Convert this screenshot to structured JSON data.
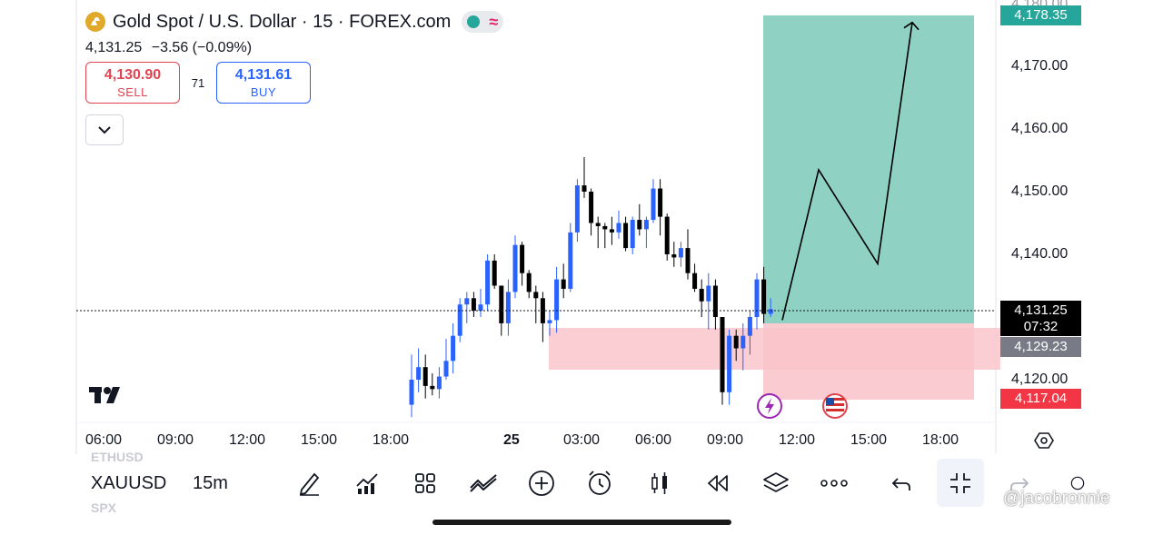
{
  "header": {
    "title": "Gold Spot / U.S. Dollar · 15 · FOREX.com",
    "last_price": "4,131.25",
    "change": "−3.56 (−0.09%)",
    "sell_price": "4,130.90",
    "sell_label": "SELL",
    "spread": "71",
    "buy_price": "4,131.61",
    "buy_label": "BUY"
  },
  "price_tags": {
    "top_partial": "4,180.00",
    "target": "4,178.35",
    "current": "4,131.25",
    "countdown": "07:32",
    "entry": "4,129.23",
    "stop": "4,117.04"
  },
  "toolbar": {
    "symbol": "XAUUSD",
    "interval": "15m",
    "ghost_above": "ETHUSD",
    "ghost_below": "SPX",
    "icons": [
      "draw-icon",
      "indicators-icon",
      "layouts-icon",
      "compare-icon",
      "add-icon",
      "alert-icon",
      "candles-icon",
      "replay-icon",
      "layers-icon",
      "more-icon",
      "undo-icon",
      "collapse-icon",
      "redo-icon",
      "partial-icon"
    ]
  },
  "watermark": "@jacobronnie",
  "colors": {
    "up": "#2962ff",
    "down": "#000000",
    "target_zone": "#8fd1c3",
    "stop_zone": "#f9c5cb",
    "sell": "#e04450",
    "buy": "#2962ff",
    "target_tag": "#26a69a",
    "stop_tag": "#f23645",
    "entry_tag": "#787b86"
  },
  "chart_data": {
    "type": "candlestick",
    "symbol": "XAUUSD",
    "timeframe": "15",
    "y_axis": {
      "ticks": [
        4120,
        4130,
        4140,
        4150,
        4160,
        4170
      ],
      "tick_labels": [
        "4,120.00",
        "4,130.00",
        "4,140.00",
        "4,150.00",
        "4,160.00",
        "4,170.00"
      ],
      "side": "right"
    },
    "x_axis": {
      "ticks": [
        "06:00",
        "09:00",
        "12:00",
        "15:00",
        "18:00",
        "25",
        "03:00",
        "06:00",
        "09:00",
        "12:00",
        "15:00",
        "18:00"
      ]
    },
    "candles_ohlc": [
      [
        4116.0,
        4124.0,
        4114.0,
        4120.0
      ],
      [
        4120.0,
        4125.0,
        4118.0,
        4122.0
      ],
      [
        4122.0,
        4124.0,
        4117.0,
        4119.0
      ],
      [
        4119.0,
        4121.0,
        4117.5,
        4118.5
      ],
      [
        4118.5,
        4122.0,
        4117.0,
        4120.5
      ],
      [
        4120.5,
        4126.5,
        4120.0,
        4123.0
      ],
      [
        4123.0,
        4129.0,
        4121.0,
        4127.0
      ],
      [
        4127.0,
        4133.0,
        4126.0,
        4132.0
      ],
      [
        4132.0,
        4134.0,
        4129.0,
        4133.0
      ],
      [
        4133.0,
        4134.0,
        4130.0,
        4131.0
      ],
      [
        4131.0,
        4134.5,
        4130.0,
        4132.0
      ],
      [
        4132.0,
        4140.0,
        4131.0,
        4139.0
      ],
      [
        4139.0,
        4140.0,
        4134.5,
        4135.0
      ],
      [
        4135.0,
        4135.0,
        4127.0,
        4129.0
      ],
      [
        4129.0,
        4136.0,
        4127.0,
        4134.0
      ],
      [
        4134.0,
        4143.0,
        4133.0,
        4141.5
      ],
      [
        4141.5,
        4142.0,
        4135.0,
        4137.0
      ],
      [
        4137.0,
        4137.5,
        4133.0,
        4134.0
      ],
      [
        4134.0,
        4135.0,
        4129.0,
        4133.0
      ],
      [
        4133.0,
        4134.0,
        4126.0,
        4129.0
      ],
      [
        4129.0,
        4131.0,
        4127.0,
        4129.5
      ],
      [
        4129.5,
        4138.0,
        4127.5,
        4136.0
      ],
      [
        4136.0,
        4138.5,
        4133.0,
        4134.5
      ],
      [
        4134.5,
        4145.0,
        4134.0,
        4143.5
      ],
      [
        4143.5,
        4152.0,
        4142.0,
        4151.0
      ],
      [
        4151.0,
        4155.5,
        4149.0,
        4150.0
      ],
      [
        4150.0,
        4150.5,
        4143.0,
        4145.0
      ],
      [
        4145.0,
        4146.0,
        4141.0,
        4144.5
      ],
      [
        4144.5,
        4145.0,
        4141.0,
        4144.0
      ],
      [
        4144.0,
        4146.0,
        4141.5,
        4143.5
      ],
      [
        4143.5,
        4147.0,
        4142.5,
        4145.0
      ],
      [
        4145.0,
        4146.0,
        4140.5,
        4141.0
      ],
      [
        4141.0,
        4146.0,
        4140.0,
        4145.5
      ],
      [
        4145.5,
        4148.0,
        4143.0,
        4144.0
      ],
      [
        4144.0,
        4146.0,
        4141.0,
        4145.5
      ],
      [
        4145.5,
        4152.0,
        4145.0,
        4150.5
      ],
      [
        4150.5,
        4152.0,
        4143.0,
        4146.0
      ],
      [
        4146.0,
        4146.5,
        4139.0,
        4140.0
      ],
      [
        4140.0,
        4142.0,
        4138.0,
        4139.5
      ],
      [
        4139.5,
        4142.0,
        4138.0,
        4141.0
      ],
      [
        4141.0,
        4144.0,
        4136.0,
        4137.0
      ],
      [
        4137.0,
        4138.5,
        4134.0,
        4134.5
      ],
      [
        4134.5,
        4136.0,
        4130.0,
        4132.5
      ],
      [
        4132.5,
        4137.0,
        4128.0,
        4135.0
      ],
      [
        4135.0,
        4136.0,
        4128.0,
        4130.0
      ],
      [
        4130.0,
        4130.0,
        4116.0,
        4118.0
      ],
      [
        4118.0,
        4128.0,
        4116.0,
        4127.0
      ],
      [
        4127.0,
        4128.0,
        4123.0,
        4125.0
      ],
      [
        4125.0,
        4129.0,
        4121.5,
        4127.0
      ],
      [
        4127.0,
        4131.0,
        4124.0,
        4130.0
      ],
      [
        4130.0,
        4137.0,
        4128.0,
        4136.0
      ],
      [
        4136.0,
        4138.0,
        4129.0,
        4130.5
      ],
      [
        4130.5,
        4133.0,
        4130.0,
        4131.25
      ]
    ],
    "last_price": 4131.25,
    "position": {
      "direction": "long",
      "target": 4178.35,
      "entry": 4129.23,
      "stop": 4117.04
    },
    "projected_path": [
      [
        0,
        4129.5
      ],
      [
        1,
        4153.5
      ],
      [
        2,
        4138.5
      ],
      [
        3,
        4177.0
      ]
    ]
  }
}
